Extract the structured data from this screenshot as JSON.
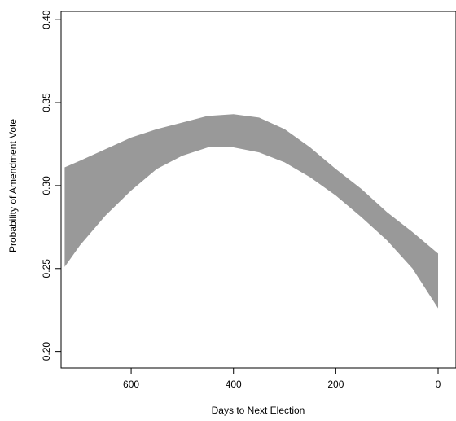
{
  "chart_data": {
    "type": "area",
    "title": "",
    "xlabel": "Days to Next Election",
    "ylabel": "Probability of Amendment Vote",
    "xlim": [
      737,
      -35
    ],
    "ylim": [
      0.19,
      0.405
    ],
    "x_ticks": [
      600,
      400,
      200,
      0
    ],
    "x_tick_labels": [
      "600",
      "400",
      "200",
      "0"
    ],
    "y_ticks": [
      0.2,
      0.25,
      0.3,
      0.35,
      0.4
    ],
    "y_tick_labels": [
      "0.20",
      "0.25",
      "0.30",
      "0.35",
      "0.40"
    ],
    "grid": false,
    "legend": "none",
    "band_color": "#999999",
    "series": [
      {
        "x": [
          730,
          700,
          650,
          600,
          550,
          500,
          450,
          400,
          350,
          300,
          250,
          200,
          150,
          100,
          50,
          0
        ],
        "lower": [
          0.251,
          0.264,
          0.282,
          0.297,
          0.31,
          0.318,
          0.323,
          0.323,
          0.32,
          0.314,
          0.305,
          0.294,
          0.281,
          0.267,
          0.25,
          0.226
        ],
        "upper": [
          0.311,
          0.315,
          0.322,
          0.329,
          0.334,
          0.338,
          0.342,
          0.343,
          0.341,
          0.334,
          0.323,
          0.31,
          0.298,
          0.284,
          0.272,
          0.259
        ]
      }
    ]
  }
}
